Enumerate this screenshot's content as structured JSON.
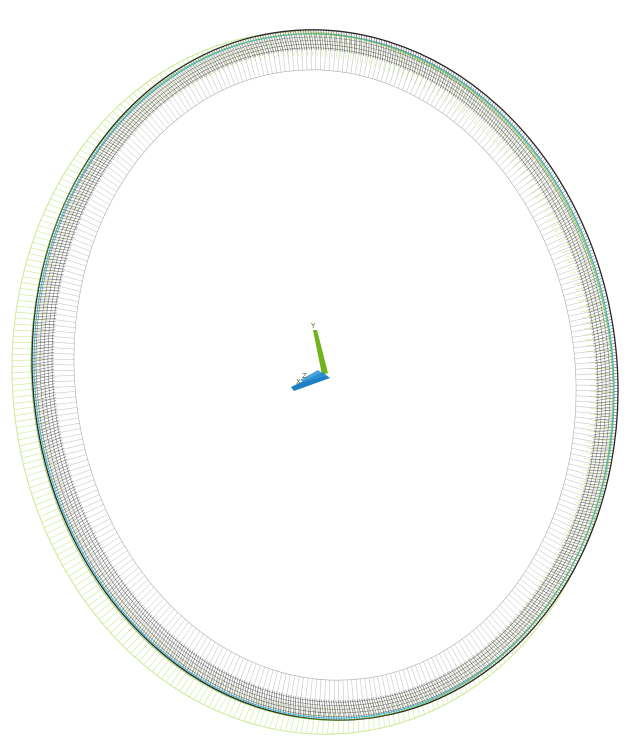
{
  "view": {
    "background": "#ffffff",
    "colors": {
      "mesh": "#1a1a1a",
      "mesh_light": "#9a9a9a",
      "outer_ring": "#c9e58a",
      "highlight_ring": "#38b6d8",
      "green_ring": "#6fbf2a",
      "axis_y": "#6fb41c",
      "axis_x": "#1f7fc4",
      "axis_z": "#2f93d6"
    },
    "triad": {
      "labels": {
        "y": "Y",
        "x": "X",
        "z": "Z"
      }
    }
  }
}
